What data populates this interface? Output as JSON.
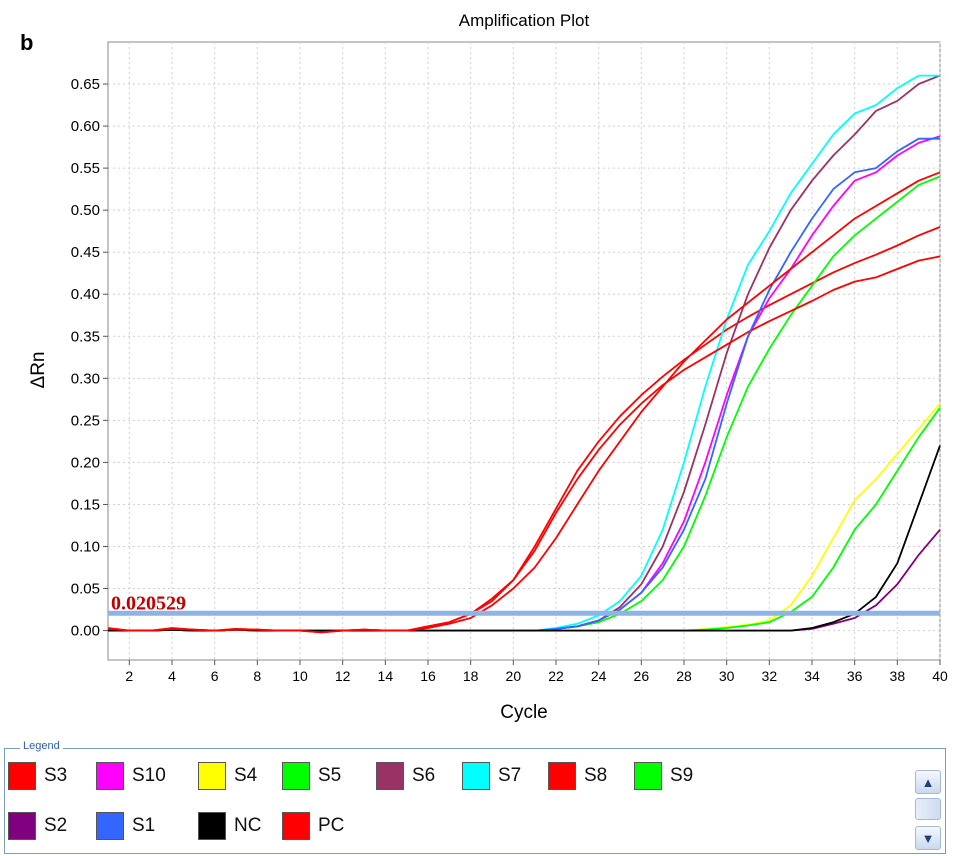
{
  "panel_label": "b",
  "chart_data": {
    "type": "line",
    "title": "Amplification Plot",
    "xlabel": "Cycle",
    "ylabel": "ΔRn",
    "xlim": [
      1,
      40
    ],
    "ylim": [
      -0.035,
      0.7
    ],
    "x_ticks": [
      2,
      4,
      6,
      8,
      10,
      12,
      14,
      16,
      18,
      20,
      22,
      24,
      26,
      28,
      30,
      32,
      34,
      36,
      38,
      40
    ],
    "y_ticks": [
      0.0,
      0.05,
      0.1,
      0.15,
      0.2,
      0.25,
      0.3,
      0.35,
      0.4,
      0.45,
      0.5,
      0.55,
      0.6,
      0.65
    ],
    "grid": true,
    "threshold": {
      "value": 0.020529,
      "label": "0.020529",
      "color": "#8eb4e3",
      "label_color": "#c00000"
    },
    "x": [
      1,
      2,
      3,
      4,
      5,
      6,
      7,
      8,
      9,
      10,
      11,
      12,
      13,
      14,
      15,
      16,
      17,
      18,
      19,
      20,
      21,
      22,
      23,
      24,
      25,
      26,
      27,
      28,
      29,
      30,
      31,
      32,
      33,
      34,
      35,
      36,
      37,
      38,
      39,
      40
    ],
    "series": [
      {
        "name": "S3",
        "color": "#ff0000",
        "values": [
          0.002,
          0,
          0,
          0.003,
          0.001,
          0,
          0.002,
          0.001,
          0,
          0,
          -0.002,
          0,
          0.001,
          0,
          0,
          0.005,
          0.01,
          0.02,
          0.035,
          0.06,
          0.1,
          0.145,
          0.19,
          0.225,
          0.255,
          0.28,
          0.302,
          0.322,
          0.34,
          0.358,
          0.373,
          0.387,
          0.4,
          0.413,
          0.426,
          0.437,
          0.447,
          0.458,
          0.47,
          0.48
        ]
      },
      {
        "name": "S10",
        "color": "#ff00ff",
        "values": [
          0,
          0,
          0,
          0.002,
          0,
          0,
          0.001,
          0,
          0,
          0,
          0,
          0,
          0,
          0,
          0,
          0,
          0,
          0,
          0,
          0,
          0,
          0.002,
          0.005,
          0.012,
          0.025,
          0.045,
          0.08,
          0.13,
          0.2,
          0.28,
          0.35,
          0.395,
          0.43,
          0.47,
          0.505,
          0.535,
          0.545,
          0.565,
          0.58,
          0.588
        ]
      },
      {
        "name": "S4",
        "color": "#ffff00",
        "values": [
          0,
          0,
          0,
          0.002,
          0,
          0,
          0.002,
          0.001,
          0,
          0,
          0,
          0,
          0,
          0,
          0,
          0,
          0,
          0,
          0,
          0,
          0,
          0,
          0,
          0,
          0,
          0,
          0,
          0,
          0.002,
          0.004,
          0.007,
          0.012,
          0.03,
          0.065,
          0.11,
          0.155,
          0.18,
          0.21,
          0.24,
          0.27
        ]
      },
      {
        "name": "S5",
        "color": "#00ff00",
        "values": [
          0,
          0,
          0,
          0.001,
          0,
          0,
          0.001,
          0,
          0,
          0,
          0,
          0,
          0,
          0,
          0,
          0,
          0,
          0,
          0,
          0,
          0,
          0.002,
          0.005,
          0.01,
          0.02,
          0.035,
          0.06,
          0.1,
          0.16,
          0.23,
          0.29,
          0.335,
          0.375,
          0.41,
          0.445,
          0.47,
          0.49,
          0.51,
          0.53,
          0.54
        ]
      },
      {
        "name": "S6",
        "color": "#993366",
        "values": [
          0,
          0,
          0,
          0.001,
          0,
          0,
          0.001,
          0,
          0,
          0,
          0,
          0,
          0,
          0,
          0,
          0,
          0,
          0,
          0,
          0,
          0,
          0.002,
          0.005,
          0.012,
          0.028,
          0.055,
          0.1,
          0.165,
          0.245,
          0.33,
          0.4,
          0.455,
          0.5,
          0.535,
          0.565,
          0.59,
          0.618,
          0.63,
          0.65,
          0.66
        ]
      },
      {
        "name": "S7",
        "color": "#00ffff",
        "values": [
          0,
          0,
          0,
          0.001,
          0,
          0,
          0.001,
          0,
          0,
          0,
          0,
          0,
          0,
          0,
          0,
          0,
          0,
          0,
          0,
          0,
          0,
          0.003,
          0.008,
          0.018,
          0.035,
          0.065,
          0.12,
          0.2,
          0.29,
          0.37,
          0.435,
          0.475,
          0.52,
          0.555,
          0.59,
          0.615,
          0.625,
          0.645,
          0.66,
          0.66
        ]
      },
      {
        "name": "S8",
        "color": "#ff0000",
        "values": [
          0.003,
          0,
          0,
          0.002,
          0.001,
          0,
          0.002,
          0.001,
          0,
          0,
          -0.001,
          0,
          0.001,
          0,
          0,
          0.005,
          0.01,
          0.02,
          0.038,
          0.06,
          0.095,
          0.14,
          0.18,
          0.215,
          0.245,
          0.27,
          0.292,
          0.31,
          0.325,
          0.34,
          0.355,
          0.368,
          0.38,
          0.392,
          0.405,
          0.415,
          0.42,
          0.43,
          0.44,
          0.445
        ]
      },
      {
        "name": "S9",
        "color": "#00ff00",
        "values": [
          0,
          0,
          0,
          0.001,
          0,
          0,
          0.001,
          0,
          0,
          0,
          0,
          0,
          0,
          0,
          0,
          0,
          0,
          0,
          0,
          0,
          0,
          0,
          0,
          0,
          0,
          0,
          0,
          0,
          0.001,
          0.003,
          0.006,
          0.01,
          0.022,
          0.04,
          0.075,
          0.12,
          0.15,
          0.19,
          0.23,
          0.265
        ]
      },
      {
        "name": "S2",
        "color": "#800080",
        "values": [
          0,
          0,
          0,
          0.001,
          0,
          0,
          0.001,
          0,
          0,
          0,
          0,
          0,
          0,
          0,
          0,
          0,
          0,
          0,
          0,
          0,
          0,
          0,
          0,
          0,
          0,
          0,
          0,
          0,
          0,
          0,
          0,
          0,
          0,
          0.002,
          0.008,
          0.015,
          0.03,
          0.055,
          0.09,
          0.12
        ]
      },
      {
        "name": "S1",
        "color": "#3366ff",
        "values": [
          0,
          0,
          0,
          0.001,
          0,
          0,
          0.001,
          0,
          0,
          0,
          0,
          0,
          0,
          0,
          0,
          0,
          0,
          0,
          0,
          0,
          0,
          0.002,
          0.005,
          0.012,
          0.025,
          0.045,
          0.075,
          0.12,
          0.18,
          0.27,
          0.35,
          0.405,
          0.45,
          0.49,
          0.525,
          0.545,
          0.55,
          0.57,
          0.585,
          0.585
        ]
      },
      {
        "name": "NC",
        "color": "#000000",
        "values": [
          0,
          0,
          0,
          0.001,
          0,
          0,
          0.001,
          0,
          0,
          0,
          0,
          0,
          0,
          0,
          0,
          0,
          0,
          0,
          0,
          0,
          0,
          0,
          0,
          0,
          0,
          0,
          0,
          0,
          0,
          0,
          0,
          0,
          0,
          0.003,
          0.01,
          0.02,
          0.04,
          0.08,
          0.15,
          0.22
        ]
      },
      {
        "name": "PC",
        "color": "#ff0000",
        "values": [
          0.002,
          0,
          0,
          0.002,
          0.001,
          0,
          0.001,
          0.001,
          0,
          0,
          -0.002,
          0,
          0.001,
          0,
          0,
          0.003,
          0.008,
          0.015,
          0.03,
          0.05,
          0.075,
          0.11,
          0.15,
          0.19,
          0.225,
          0.26,
          0.29,
          0.32,
          0.345,
          0.37,
          0.39,
          0.41,
          0.43,
          0.45,
          0.47,
          0.49,
          0.505,
          0.52,
          0.535,
          0.545
        ]
      }
    ]
  },
  "legend": {
    "title": "Legend",
    "items": [
      {
        "name": "S3",
        "color": "#ff0000"
      },
      {
        "name": "S10",
        "color": "#ff00ff"
      },
      {
        "name": "S4",
        "color": "#ffff00"
      },
      {
        "name": "S5",
        "color": "#00ff00"
      },
      {
        "name": "S6",
        "color": "#993366"
      },
      {
        "name": "S7",
        "color": "#00ffff"
      },
      {
        "name": "S8",
        "color": "#ff0000"
      },
      {
        "name": "S9",
        "color": "#00ff00"
      },
      {
        "name": "S2",
        "color": "#800080"
      },
      {
        "name": "S1",
        "color": "#3366ff"
      },
      {
        "name": "NC",
        "color": "#000000"
      },
      {
        "name": "PC",
        "color": "#ff0000"
      }
    ],
    "scroll_up_icon": "chevron-up-icon",
    "scroll_down_icon": "chevron-down-icon"
  }
}
